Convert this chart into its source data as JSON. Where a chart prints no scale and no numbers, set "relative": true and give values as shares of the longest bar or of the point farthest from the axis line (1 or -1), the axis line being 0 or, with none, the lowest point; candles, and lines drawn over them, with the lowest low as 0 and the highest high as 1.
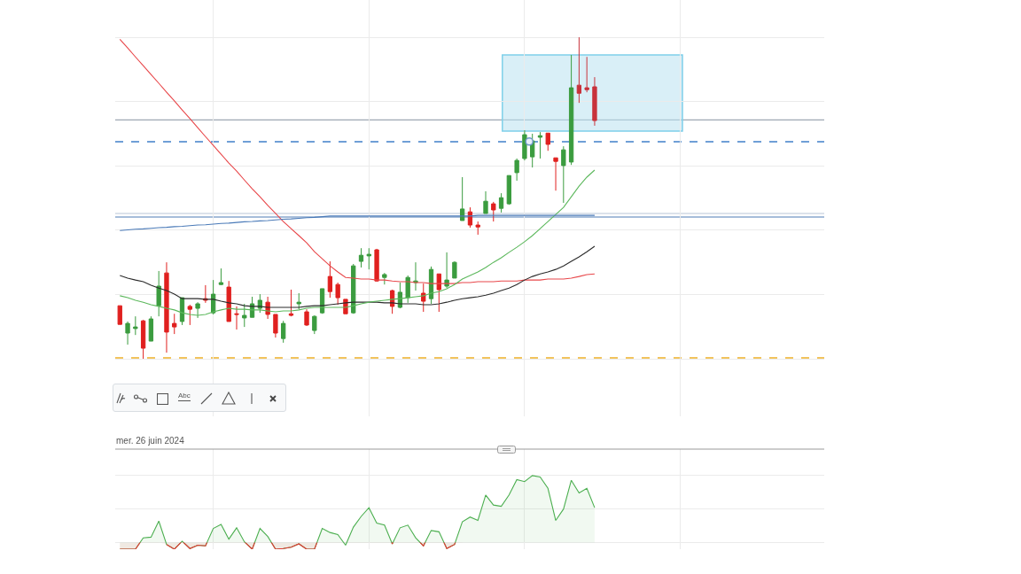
{
  "chart_data": [
    {
      "type": "candlestick",
      "relative": true,
      "categories": [
        null,
        null,
        null,
        null,
        null,
        null,
        null,
        null,
        null,
        null,
        null,
        null,
        null,
        null,
        null,
        null,
        null,
        null,
        null,
        null,
        null,
        null,
        null,
        null,
        null,
        null,
        null,
        null,
        null,
        null,
        null,
        null,
        null,
        null,
        null,
        null,
        null,
        null,
        null,
        null,
        null,
        null,
        null,
        null,
        null,
        null,
        null,
        null,
        null,
        null,
        null,
        null,
        null,
        null,
        null,
        null,
        null,
        null,
        null,
        null,
        null,
        null
      ],
      "ohlc": [
        [
          0.165,
          0.165,
          0.107,
          0.107
        ],
        [
          0.08,
          0.116,
          0.044,
          0.11
        ],
        [
          0.094,
          0.132,
          0.074,
          0.099
        ],
        [
          0.118,
          0.121,
          0,
          0.033
        ],
        [
          0.055,
          0.132,
          0.055,
          0.124
        ],
        [
          0.165,
          0.273,
          0.132,
          0.226
        ],
        [
          0.267,
          0.3,
          0.019,
          0.083
        ],
        [
          0.11,
          0.14,
          0.077,
          0.099
        ],
        [
          0.116,
          0.19,
          0.105,
          0.19
        ],
        [
          0.163,
          0.168,
          0.105,
          0.154
        ],
        [
          0.157,
          0.176,
          0.127,
          0.171
        ],
        [
          0.187,
          0.229,
          0.174,
          0.182
        ],
        [
          0.143,
          0.245,
          0.138,
          0.201
        ],
        [
          0.231,
          0.281,
          0.229,
          0.237
        ],
        [
          0.223,
          0.242,
          0.116,
          0.116
        ],
        [
          0.14,
          0.163,
          0.091,
          0.138
        ],
        [
          0.127,
          0.171,
          0.099,
          0.135
        ],
        [
          0.129,
          0.193,
          0.129,
          0.171
        ],
        [
          0.157,
          0.201,
          0.143,
          0.182
        ],
        [
          0.176,
          0.193,
          0.124,
          0.138
        ],
        [
          0.138,
          0.138,
          0.066,
          0.08
        ],
        [
          0.063,
          0.118,
          0.05,
          0.11
        ],
        [
          0.14,
          0.215,
          0.132,
          0.135
        ],
        [
          0.171,
          0.204,
          0.154,
          0.176
        ],
        [
          0.146,
          0.154,
          0.102,
          0.105
        ],
        [
          0.088,
          0.135,
          0.077,
          0.132
        ],
        [
          0.143,
          0.218,
          0.14,
          0.218
        ],
        [
          0.256,
          0.303,
          0.19,
          0.209
        ],
        [
          0.231,
          0.237,
          0.168,
          0.19
        ],
        [
          0.185,
          0.185,
          0.14,
          0.14
        ],
        [
          0.143,
          0.295,
          0.14,
          0.289
        ],
        [
          0.303,
          0.344,
          0.284,
          0.322
        ],
        [
          0.32,
          0.344,
          0.278,
          0.325
        ],
        [
          0.339,
          0.342,
          0.24,
          0.242
        ],
        [
          0.253,
          0.267,
          0.231,
          0.262
        ],
        [
          0.212,
          0.215,
          0.14,
          0.163
        ],
        [
          0.16,
          0.237,
          0.157,
          0.207
        ],
        [
          0.19,
          0.259,
          0.174,
          0.253
        ],
        [
          0.237,
          0.3,
          0.212,
          0.242
        ],
        [
          0.204,
          0.234,
          0.146,
          0.179
        ],
        [
          0.187,
          0.287,
          0.171,
          0.278
        ],
        [
          0.264,
          0.264,
          0.146,
          0.215
        ],
        [
          0.226,
          0.331,
          0.22,
          0.245
        ],
        [
          0.251,
          0.303,
          0.251,
          0.3
        ],
        [
          0.43,
          0.565,
          0.43,
          0.466
        ],
        [
          0.457,
          0.471,
          0.408,
          0.416
        ],
        [
          0.416,
          0.427,
          0.386,
          0.41
        ],
        [
          0.452,
          0.521,
          0.452,
          0.49
        ],
        [
          0.482,
          0.488,
          0.427,
          0.463
        ],
        [
          0.468,
          0.515,
          0.455,
          0.501
        ],
        [
          0.482,
          0.57,
          0.479,
          0.57
        ],
        [
          0.579,
          0.623,
          0.554,
          0.617
        ],
        [
          0.623,
          0.711,
          0.617,
          0.697
        ],
        [
          0.628,
          0.7,
          0.595,
          0.678
        ],
        [
          0.689,
          0.705,
          0.623,
          0.694
        ],
        [
          0.702,
          0.702,
          0.647,
          0.667
        ],
        [
          0.625,
          0.625,
          0.523,
          0.614
        ],
        [
          0.601,
          0.661,
          0.485,
          0.65
        ],
        [
          0.612,
          0.945,
          0.603,
          0.843
        ],
        [
          0.851,
          1,
          0.796,
          0.826
        ],
        [
          0.843,
          0.939,
          0.829,
          0.837
        ],
        [
          0.846,
          0.876,
          0.725,
          0.741
        ]
      ],
      "colors": [
        "#e0201f",
        "#3b9c3f",
        "#3b9c3f",
        "#e0201f",
        "#3b9c3f",
        "#3b9c3f",
        "#e0201f",
        "#e0201f",
        "#3b9c3f",
        "#e0201f",
        "#3b9c3f",
        "#e0201f",
        "#3b9c3f",
        "#3b9c3f",
        "#e0201f",
        "#e0201f",
        "#3b9c3f",
        "#3b9c3f",
        "#3b9c3f",
        "#e0201f",
        "#e0201f",
        "#3b9c3f",
        "#e0201f",
        "#3b9c3f",
        "#e0201f",
        "#3b9c3f",
        "#3b9c3f",
        "#e0201f",
        "#e0201f",
        "#e0201f",
        "#3b9c3f",
        "#3b9c3f",
        "#3b9c3f",
        "#e0201f",
        "#3b9c3f",
        "#e0201f",
        "#3b9c3f",
        "#3b9c3f",
        "#3b9c3f",
        "#e0201f",
        "#3b9c3f",
        "#e0201f",
        "#3b9c3f",
        "#3b9c3f",
        "#3b9c3f",
        "#e0201f",
        "#e0201f",
        "#3b9c3f",
        "#e0201f",
        "#3b9c3f",
        "#3b9c3f",
        "#3b9c3f",
        "#3b9c3f",
        "#3b9c3f",
        "#3b9c3f",
        "#e0201f",
        "#e0201f",
        "#3b9c3f",
        "#3b9c3f",
        "#c8323b",
        "#c8323b",
        "#c8323b"
      ],
      "series": [
        {
          "type": "line",
          "color": "#e8474a",
          "values": [
            0.994,
            0.967,
            0.939,
            0.912,
            0.884,
            0.857,
            0.829,
            0.802,
            0.774,
            0.747,
            0.719,
            0.691,
            0.664,
            0.636,
            0.609,
            0.584,
            0.556,
            0.529,
            0.504,
            0.477,
            0.452,
            0.427,
            0.405,
            0.383,
            0.361,
            0.333,
            0.311,
            0.289,
            0.27,
            0.253,
            0.251,
            0.248,
            0.248,
            0.245,
            0.245,
            0.242,
            0.24,
            0.24,
            0.237,
            0.237,
            0.234,
            0.234,
            0.234,
            0.234,
            0.237,
            0.237,
            0.24,
            0.24,
            0.24,
            0.242,
            0.242,
            0.242,
            0.245,
            0.245,
            0.245,
            0.248,
            0.248,
            0.248,
            0.251,
            0.256,
            0.262,
            0.264
          ]
        },
        {
          "type": "line",
          "color": "#2b2b2b",
          "values": [
            0.259,
            0.251,
            0.245,
            0.24,
            0.229,
            0.22,
            0.212,
            0.201,
            0.187,
            0.187,
            0.187,
            0.185,
            0.185,
            0.179,
            0.174,
            0.171,
            0.165,
            0.163,
            0.163,
            0.16,
            0.16,
            0.16,
            0.16,
            0.16,
            0.163,
            0.165,
            0.165,
            0.168,
            0.171,
            0.174,
            0.176,
            0.176,
            0.176,
            0.176,
            0.174,
            0.174,
            0.171,
            0.171,
            0.171,
            0.168,
            0.168,
            0.171,
            0.176,
            0.182,
            0.187,
            0.19,
            0.193,
            0.198,
            0.204,
            0.212,
            0.22,
            0.231,
            0.245,
            0.256,
            0.264,
            0.27,
            0.278,
            0.289,
            0.303,
            0.317,
            0.333,
            0.35
          ]
        },
        {
          "type": "line",
          "color": "#5cb85c",
          "values": [
            0.196,
            0.19,
            0.182,
            0.176,
            0.168,
            0.163,
            0.157,
            0.152,
            0.143,
            0.138,
            0.135,
            0.138,
            0.146,
            0.152,
            0.157,
            0.154,
            0.154,
            0.152,
            0.152,
            0.149,
            0.146,
            0.149,
            0.149,
            0.152,
            0.157,
            0.16,
            0.16,
            0.16,
            0.16,
            0.16,
            0.165,
            0.171,
            0.176,
            0.179,
            0.182,
            0.185,
            0.187,
            0.19,
            0.193,
            0.196,
            0.204,
            0.209,
            0.218,
            0.231,
            0.248,
            0.259,
            0.27,
            0.284,
            0.3,
            0.314,
            0.331,
            0.347,
            0.364,
            0.383,
            0.405,
            0.427,
            0.449,
            0.471,
            0.504,
            0.537,
            0.565,
            0.587
          ]
        },
        {
          "type": "line",
          "color": "#4a7ab8",
          "values": [
            0.399,
            0.401,
            0.403,
            0.404,
            0.406,
            0.408,
            0.409,
            0.411,
            0.412,
            0.414,
            0.416,
            0.417,
            0.419,
            0.421,
            0.422,
            0.424,
            0.426,
            0.427,
            0.429,
            0.43,
            0.432,
            0.434,
            0.435,
            0.437,
            0.439,
            0.44,
            0.442,
            0.444,
            0.444,
            0.444,
            0.444,
            0.444,
            0.444,
            0.444,
            0.444,
            0.444,
            0.444,
            0.444,
            0.444,
            0.444,
            0.444,
            0.444,
            0.444,
            0.444,
            0.444,
            0.444,
            0.446,
            0.446,
            0.446,
            0.446,
            0.446,
            0.446,
            0.446,
            0.446,
            0.446,
            0.446,
            0.446,
            0.446,
            0.446,
            0.446,
            0.446,
            0.446
          ]
        }
      ],
      "ref_lines": [
        {
          "axis": "y",
          "value": 0.743,
          "color": "#9ea7b3"
        },
        {
          "axis": "y",
          "value": 0.675,
          "color": "#6f9fd6",
          "line_style": "dashed"
        },
        {
          "axis": "y",
          "value": 0.452,
          "color": "#b9c6d8"
        },
        {
          "axis": "y",
          "value": 0.441,
          "color": "#4f7db5"
        },
        {
          "axis": "y",
          "value": 0.003,
          "color": "#f2c45e",
          "line_style": "dashed"
        }
      ],
      "grid": true,
      "tick_labels": false,
      "annotations": [
        "mer. 26 juin 2024",
        "Abc"
      ]
    },
    {
      "type": "area",
      "relative": true,
      "categories": [
        null,
        null,
        null,
        null,
        null,
        null,
        null,
        null,
        null,
        null,
        null,
        null,
        null,
        null,
        null,
        null,
        null,
        null,
        null,
        null,
        null,
        null,
        null,
        null,
        null,
        null,
        null,
        null,
        null,
        null,
        null,
        null,
        null,
        null,
        null,
        null,
        null,
        null,
        null,
        null,
        null,
        null,
        null,
        null,
        null,
        null,
        null,
        null,
        null,
        null,
        null,
        null,
        null,
        null,
        null,
        null,
        null,
        null,
        null,
        null,
        null,
        null
      ],
      "series": [
        {
          "color": "#4caf50",
          "values": [
            -0.1,
            -0.1,
            -0.1,
            0.07,
            0.08,
            0.32,
            -0.03,
            -0.1,
            0.02,
            -0.09,
            -0.04,
            -0.05,
            0.21,
            0.27,
            0.05,
            0.22,
            0.01,
            -0.1,
            0.21,
            0.09,
            -0.1,
            -0.09,
            -0.07,
            -0.02,
            -0.1,
            -0.1,
            0.21,
            0.15,
            0.12,
            -0.04,
            0.23,
            0.39,
            0.52,
            0.29,
            0.26,
            -0.02,
            0.22,
            0.26,
            0.07,
            -0.05,
            0.18,
            0.16,
            -0.09,
            -0.03,
            0.31,
            0.38,
            0.33,
            0.71,
            0.56,
            0.54,
            0.71,
            0.94,
            0.91,
            1,
            0.98,
            0.81,
            0.33,
            0.5,
            0.93,
            0.74,
            0.81,
            0.52
          ]
        },
        {
          "color": "#e53935",
          "values": [
            -0.1,
            -0.1,
            -0.1,
            0.07,
            null,
            null,
            -0.03,
            -0.1,
            0.02,
            -0.09,
            -0.04,
            -0.05,
            0.21,
            null,
            null,
            null,
            0.01,
            -0.1,
            0.21,
            0.09,
            -0.1,
            -0.09,
            -0.07,
            -0.02,
            -0.1,
            -0.1,
            0.21,
            null,
            null,
            null,
            null,
            null,
            null,
            null,
            0.26,
            -0.02,
            0.22,
            null,
            0.07,
            -0.05,
            0.18,
            0.16,
            -0.09,
            -0.03,
            0.31,
            null,
            null,
            null,
            null,
            null,
            null,
            null,
            null,
            null,
            null,
            null,
            null,
            null,
            null,
            null,
            null,
            null
          ]
        }
      ],
      "grid": true,
      "tick_labels": false
    }
  ]
}
